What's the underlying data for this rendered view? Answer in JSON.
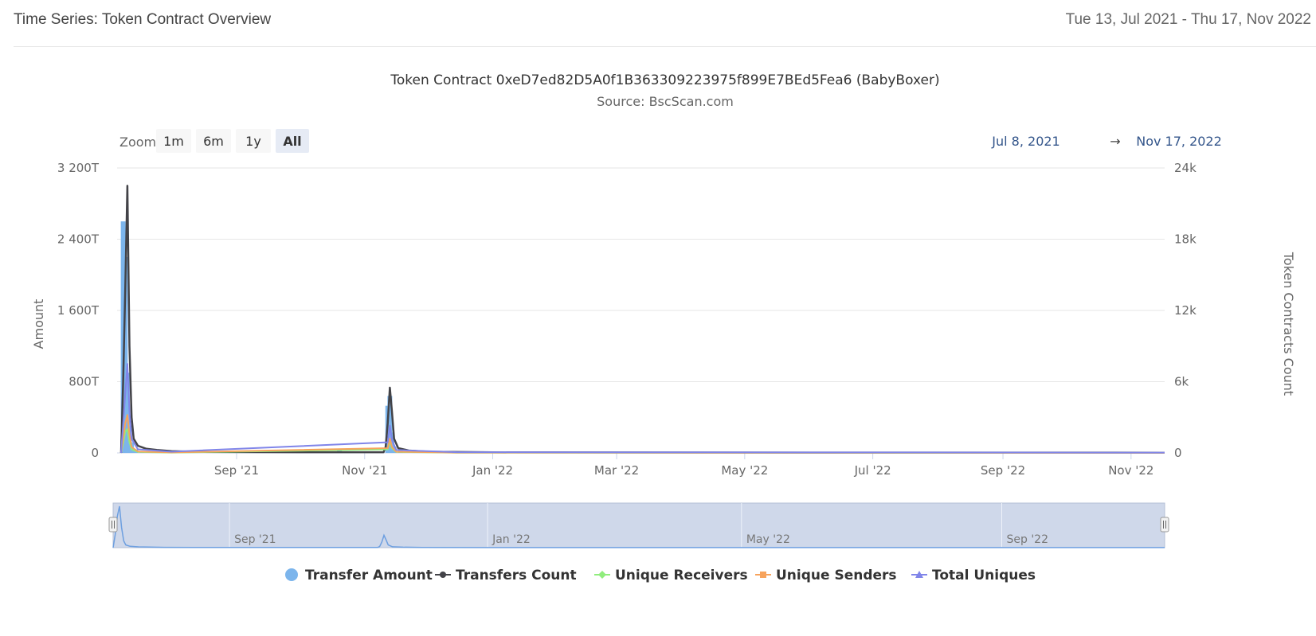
{
  "header": {
    "title": "Time Series: Token Contract Overview",
    "date_range": "Tue 13, Jul 2021 - Thu 17, Nov 2022"
  },
  "chart_data": {
    "type": "line",
    "title": "Token Contract 0xeD7ed82D5A0f1B363309223975f899E7BEd5Fea6 (BabyBoxer)",
    "subtitle": "Source: BscScan.com",
    "zoom": {
      "label": "Zoom",
      "buttons": [
        "1m",
        "6m",
        "1y",
        "All"
      ],
      "selected": "All"
    },
    "range_selector": {
      "from": "Jul 8, 2021",
      "arrow": "→",
      "to": "Nov 17, 2022"
    },
    "x_axis": {
      "type": "datetime",
      "range": [
        "2021-07-08",
        "2022-11-17"
      ],
      "ticks": [
        {
          "date": "2021-09-01",
          "label": "Sep '21"
        },
        {
          "date": "2021-11-01",
          "label": "Nov '21"
        },
        {
          "date": "2022-01-01",
          "label": "Jan '22"
        },
        {
          "date": "2022-03-01",
          "label": "Mar '22"
        },
        {
          "date": "2022-05-01",
          "label": "May '22"
        },
        {
          "date": "2022-07-01",
          "label": "Jul '22"
        },
        {
          "date": "2022-09-01",
          "label": "Sep '22"
        },
        {
          "date": "2022-11-01",
          "label": "Nov '22"
        }
      ]
    },
    "y_left": {
      "label": "Amount",
      "ylim": [
        0,
        3200
      ],
      "unit": "T",
      "ticks": [
        {
          "value": 0,
          "label": "0"
        },
        {
          "value": 800,
          "label": "800T"
        },
        {
          "value": 1600,
          "label": "1 600T"
        },
        {
          "value": 2400,
          "label": "2 400T"
        },
        {
          "value": 3200,
          "label": "3 200T"
        }
      ]
    },
    "y_right": {
      "label": "Token Contracts Count",
      "ylim": [
        0,
        24000
      ],
      "ticks": [
        {
          "value": 0,
          "label": "0"
        },
        {
          "value": 6000,
          "label": "6k"
        },
        {
          "value": 12000,
          "label": "12k"
        },
        {
          "value": 18000,
          "label": "18k"
        },
        {
          "value": 24000,
          "label": "24k"
        }
      ]
    },
    "grid": true,
    "legend_position": "bottom",
    "series": [
      {
        "name": "Transfer Amount",
        "type": "column",
        "axis": "left",
        "color": "#7cb5ec",
        "points": [
          [
            "2021-07-09",
            2600
          ],
          [
            "2021-07-10",
            2200
          ],
          [
            "2021-07-11",
            900
          ],
          [
            "2021-07-12",
            300
          ],
          [
            "2021-07-13",
            120
          ],
          [
            "2021-07-15",
            40
          ],
          [
            "2021-07-18",
            20
          ],
          [
            "2021-07-25",
            15
          ],
          [
            "2021-10-20",
            25
          ],
          [
            "2021-11-12",
            530
          ],
          [
            "2021-11-13",
            640
          ],
          [
            "2021-11-14",
            230
          ],
          [
            "2021-11-15",
            70
          ],
          [
            "2021-11-18",
            25
          ],
          [
            "2022-09-01",
            8
          ]
        ]
      },
      {
        "name": "Transfers Count",
        "type": "line",
        "marker": "circle",
        "axis": "right",
        "color": "#434348",
        "points": [
          [
            "2021-07-08",
            0
          ],
          [
            "2021-07-09",
            6000
          ],
          [
            "2021-07-10",
            14000
          ],
          [
            "2021-07-11",
            22500
          ],
          [
            "2021-07-12",
            9000
          ],
          [
            "2021-07-13",
            3000
          ],
          [
            "2021-07-14",
            1200
          ],
          [
            "2021-07-16",
            600
          ],
          [
            "2021-07-20",
            350
          ],
          [
            "2021-07-25",
            250
          ],
          [
            "2021-08-01",
            150
          ],
          [
            "2021-08-15",
            80
          ],
          [
            "2021-10-01",
            60
          ],
          [
            "2021-11-10",
            60
          ],
          [
            "2021-11-11",
            500
          ],
          [
            "2021-11-12",
            2500
          ],
          [
            "2021-11-13",
            5500
          ],
          [
            "2021-11-14",
            3500
          ],
          [
            "2021-11-15",
            1200
          ],
          [
            "2021-11-17",
            400
          ],
          [
            "2021-11-22",
            200
          ],
          [
            "2021-12-01",
            100
          ],
          [
            "2022-01-01",
            50
          ],
          [
            "2022-06-01",
            30
          ],
          [
            "2022-11-17",
            20
          ]
        ]
      },
      {
        "name": "Unique Receivers",
        "type": "line",
        "marker": "diamond",
        "axis": "right",
        "color": "#90ed7d",
        "points": [
          [
            "2021-07-08",
            0
          ],
          [
            "2021-07-09",
            800
          ],
          [
            "2021-07-10",
            1800
          ],
          [
            "2021-07-11",
            2000
          ],
          [
            "2021-07-12",
            900
          ],
          [
            "2021-07-13",
            300
          ],
          [
            "2021-07-16",
            80
          ],
          [
            "2021-08-01",
            30
          ],
          [
            "2021-11-12",
            300
          ],
          [
            "2021-11-13",
            900
          ],
          [
            "2021-11-14",
            400
          ],
          [
            "2021-11-16",
            80
          ],
          [
            "2021-12-15",
            20
          ],
          [
            "2022-11-17",
            10
          ]
        ]
      },
      {
        "name": "Unique Senders",
        "type": "line",
        "marker": "square",
        "axis": "right",
        "color": "#f7a35c",
        "points": [
          [
            "2021-07-08",
            0
          ],
          [
            "2021-07-09",
            1200
          ],
          [
            "2021-07-10",
            2500
          ],
          [
            "2021-07-11",
            3200
          ],
          [
            "2021-07-12",
            1500
          ],
          [
            "2021-07-13",
            500
          ],
          [
            "2021-07-16",
            120
          ],
          [
            "2021-08-01",
            40
          ],
          [
            "2021-11-12",
            400
          ],
          [
            "2021-11-13",
            1200
          ],
          [
            "2021-11-14",
            500
          ],
          [
            "2021-11-16",
            100
          ],
          [
            "2021-12-15",
            25
          ],
          [
            "2022-11-17",
            10
          ]
        ]
      },
      {
        "name": "Total Uniques",
        "type": "line",
        "marker": "triangle",
        "axis": "right",
        "color": "#8085e9",
        "points": [
          [
            "2021-07-08",
            0
          ],
          [
            "2021-07-09",
            2500
          ],
          [
            "2021-07-10",
            5000
          ],
          [
            "2021-07-11",
            7500
          ],
          [
            "2021-07-12",
            3500
          ],
          [
            "2021-07-13",
            1200
          ],
          [
            "2021-07-16",
            300
          ],
          [
            "2021-08-01",
            100
          ],
          [
            "2021-11-12",
            900
          ],
          [
            "2021-11-13",
            2300
          ],
          [
            "2021-11-14",
            1100
          ],
          [
            "2021-11-16",
            250
          ],
          [
            "2021-12-15",
            60
          ],
          [
            "2022-11-17",
            30
          ]
        ]
      }
    ],
    "navigator": {
      "range": [
        "2021-07-08",
        "2022-11-17"
      ],
      "ticks": [
        {
          "date": "2021-09-01",
          "label": "Sep '21"
        },
        {
          "date": "2022-01-01",
          "label": "Jan '22"
        },
        {
          "date": "2022-05-01",
          "label": "May '22"
        },
        {
          "date": "2022-09-01",
          "label": "Sep '22"
        }
      ]
    }
  }
}
